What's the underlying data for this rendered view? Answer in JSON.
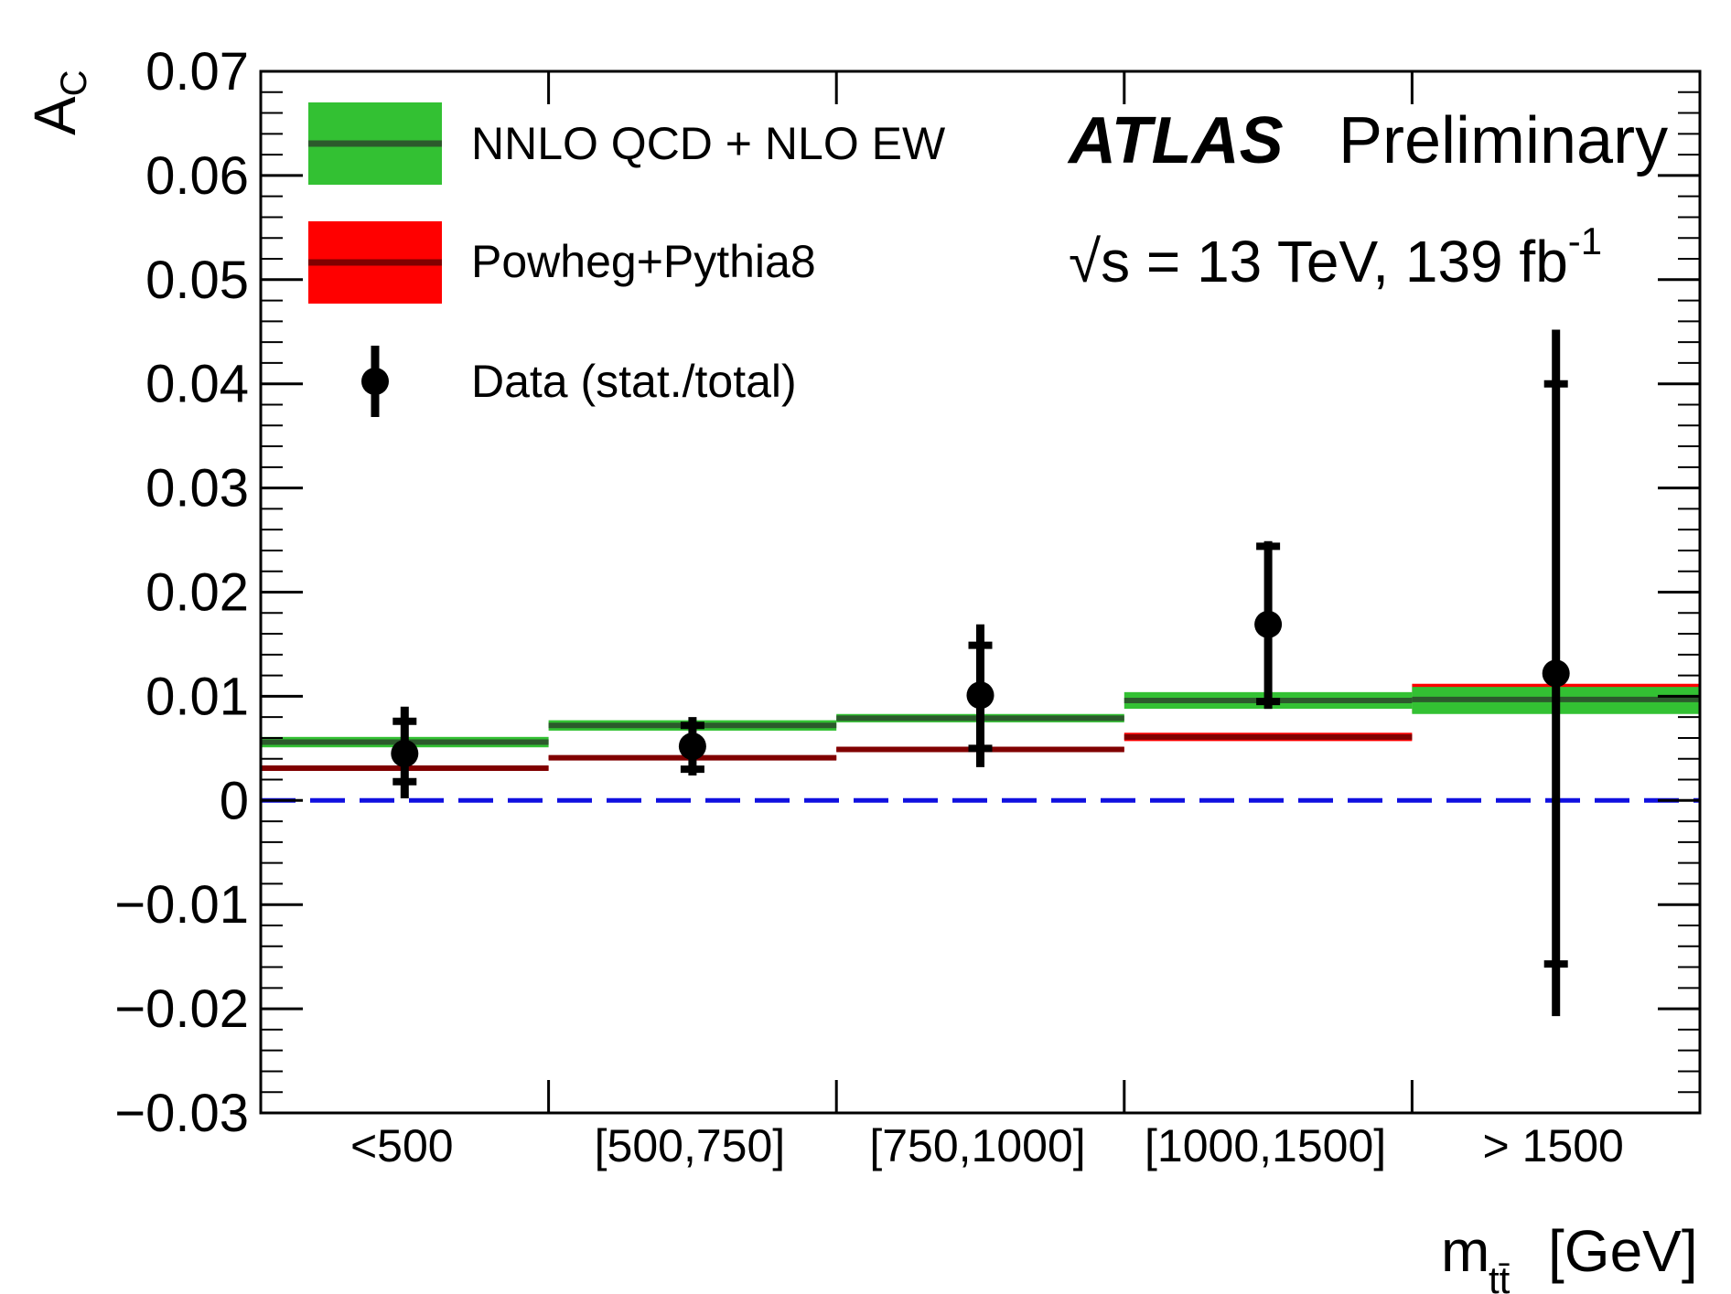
{
  "chart_data": {
    "type": "step-with-errorbars",
    "ylabel": "A",
    "ylabel_sub": "C",
    "xlabel_main": "m",
    "xlabel_sub": "tt̄",
    "xlabel_unit": "[GeV]",
    "ylim": [
      -0.03,
      0.07
    ],
    "yticks": [
      -0.03,
      -0.02,
      -0.01,
      0,
      0.01,
      0.02,
      0.03,
      0.04,
      0.05,
      0.06,
      0.07
    ],
    "ytick_labels": [
      "−0.03",
      "−0.02",
      "−0.01",
      "0",
      "0.01",
      "0.02",
      "0.03",
      "0.04",
      "0.05",
      "0.06",
      "0.07"
    ],
    "categories": [
      "<500",
      "[500,750]",
      "[750,1000]",
      "[1000,1500]",
      "> 1500"
    ],
    "reference_line": {
      "y": 0,
      "color": "#1010e0",
      "style": "dashed"
    },
    "series": [
      {
        "name": "NNLO QCD + NLO EW",
        "kind": "band",
        "band_color": "#33c133",
        "line_color": "#2c5a2c",
        "values": [
          0.0056,
          0.0072,
          0.0079,
          0.0096,
          0.0097
        ],
        "band_low": [
          0.0051,
          0.0067,
          0.0075,
          0.0088,
          0.0083
        ],
        "band_high": [
          0.0061,
          0.0077,
          0.0083,
          0.0104,
          0.0109
        ]
      },
      {
        "name": "Powheg+Pythia8",
        "kind": "band",
        "band_color": "#ff0000",
        "line_color": "#800000",
        "values": [
          0.0031,
          0.0041,
          0.0049,
          0.0061,
          0.0096
        ],
        "band_low": [
          0.0029,
          0.0039,
          0.0047,
          0.0057,
          0.0084
        ],
        "band_high": [
          0.0033,
          0.0043,
          0.0051,
          0.0065,
          0.0112
        ]
      },
      {
        "name": "Data (stat./total)",
        "kind": "points",
        "color": "#000000",
        "values": [
          0.0045,
          0.0052,
          0.0101,
          0.0169,
          0.0122
        ],
        "stat_low": [
          0.0018,
          0.003,
          0.005,
          0.0095,
          -0.0157
        ],
        "stat_high": [
          0.0076,
          0.0072,
          0.0149,
          0.0244,
          0.04
        ],
        "total_low": [
          0.0002,
          0.0024,
          0.0032,
          0.0088,
          -0.0207
        ],
        "total_high": [
          0.009,
          0.008,
          0.0169,
          0.0249,
          0.0452
        ]
      }
    ],
    "experiment": "ATLAS",
    "status": "Preliminary",
    "energy_label": "√s = 13 TeV, 139 fb",
    "energy_sup": "-1",
    "legend_position": "top-left"
  }
}
